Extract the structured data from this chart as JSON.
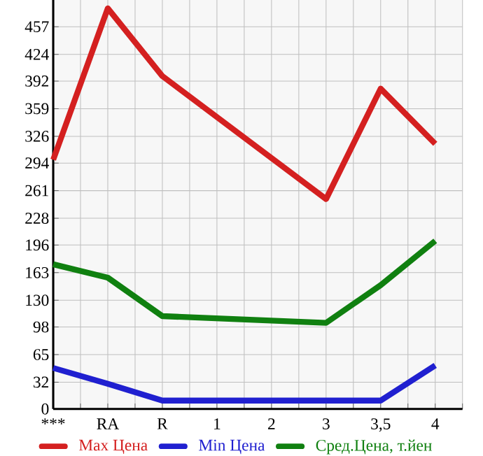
{
  "chart_data": {
    "type": "line",
    "categories": [
      "***",
      "RA",
      "R",
      "1",
      "2",
      "3",
      "3,5",
      "4"
    ],
    "series": [
      {
        "name": "Max Цена",
        "color": "#d42020",
        "values": [
          298,
          479,
          398,
          null,
          null,
          251,
          383,
          317
        ]
      },
      {
        "name": "Min Цена",
        "color": "#2020d0",
        "values": [
          49,
          30,
          10,
          null,
          null,
          10,
          10,
          52
        ]
      },
      {
        "name": "Сред.Цена, т.йен",
        "color": "#108010",
        "values": [
          173,
          157,
          111,
          null,
          null,
          103,
          148,
          201
        ]
      }
    ],
    "ylim": [
      0,
      489
    ],
    "yticks": [
      0,
      32,
      65,
      98,
      130,
      163,
      196,
      228,
      261,
      294,
      326,
      359,
      392,
      424,
      457
    ],
    "grid": true,
    "legend": "bottom",
    "marker": "none"
  }
}
